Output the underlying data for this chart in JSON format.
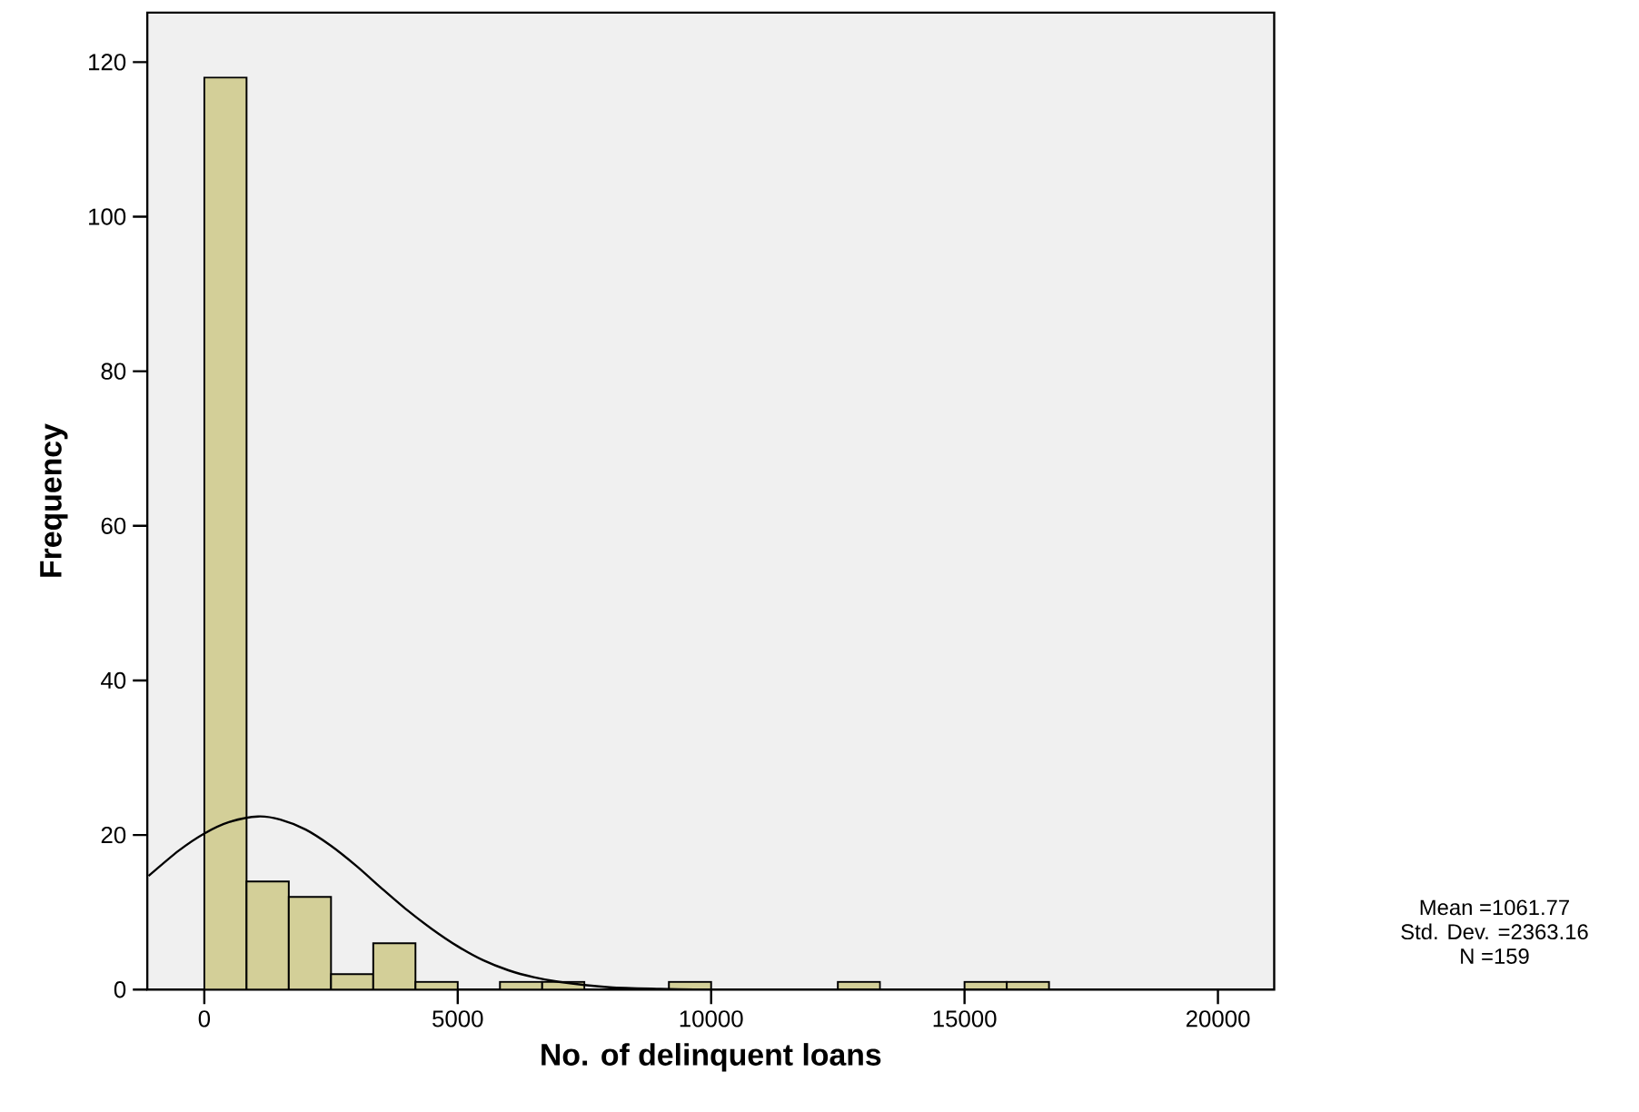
{
  "chart_data": {
    "type": "histogram",
    "xlabel": "No. of delinquent loans",
    "ylabel": "Frequency",
    "color": "#d3cf98",
    "bins": [
      0,
      833.33,
      1666.67,
      2500,
      3333.33,
      4166.67,
      5000,
      5833.33,
      6666.67,
      7500,
      8333.33,
      9166.67,
      10000,
      10833.33,
      11666.67,
      12500,
      13333.33,
      14166.67,
      15000,
      15833.33,
      16666.67,
      17500,
      18333.33,
      19166.67,
      20000
    ],
    "values": [
      118,
      14,
      12,
      2,
      6,
      1,
      0,
      1,
      1,
      0,
      0,
      1,
      0,
      0,
      0,
      1,
      0,
      0,
      1,
      1,
      0,
      0,
      0,
      0
    ],
    "series": [
      {
        "type": "line",
        "color": "#000000",
        "x": [
          -1100,
          -500,
          0,
          500,
          1061.77,
          1500,
          2000,
          2500,
          3000,
          3500,
          4000,
          4500,
          5000,
          5500,
          6000,
          6500,
          7000,
          8000,
          9000,
          10000,
          12000,
          21100
        ],
        "values": [
          14.7,
          18.0,
          20.2,
          21.7,
          22.4,
          22.0,
          20.7,
          18.6,
          16.0,
          13.1,
          10.3,
          7.8,
          5.6,
          3.8,
          2.5,
          1.6,
          1.0,
          0.3,
          0.1,
          0,
          0,
          0
        ]
      }
    ],
    "xlim": [
      -1125,
      21110
    ],
    "ylim": [
      0,
      126.4
    ],
    "xticks": [
      0,
      5000,
      10000,
      15000,
      20000
    ],
    "yticks": [
      0,
      20,
      40,
      60,
      80,
      100,
      120
    ],
    "annotations": [
      "Mean =1061.77",
      "Std. Dev. =2363.16",
      "N =159"
    ]
  }
}
